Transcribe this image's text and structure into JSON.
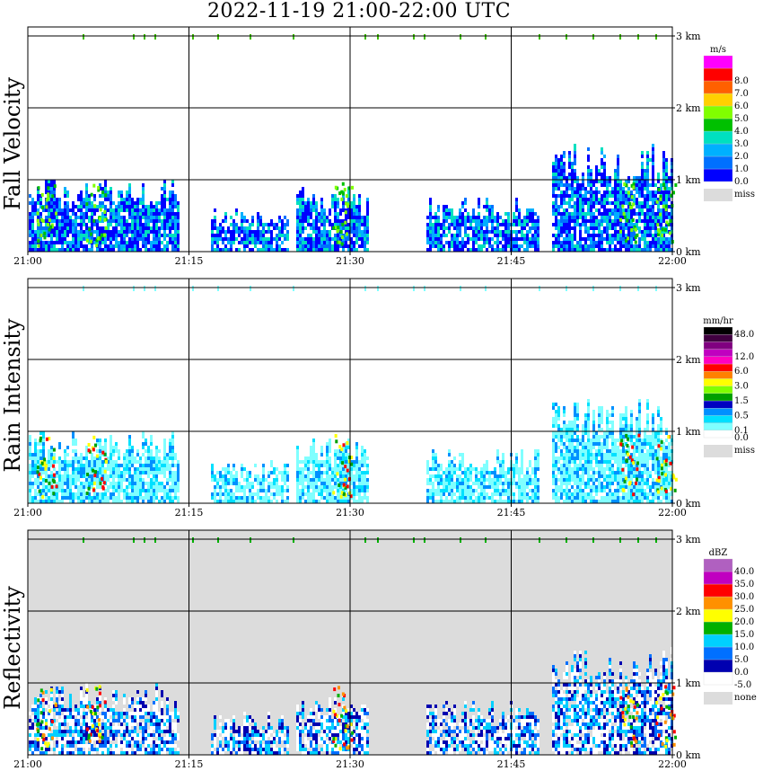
{
  "title": "2022-11-19   21:00-22:00 UTC",
  "x_ticks": [
    "21:00",
    "21:15",
    "21:30",
    "21:45",
    "22:00"
  ],
  "y_ticks": [
    "0 km",
    "1 km",
    "2 km",
    "3 km"
  ],
  "panels": [
    {
      "name": "fall-velocity",
      "label": "Fall Velocity",
      "unit": "m/s",
      "background": "#ffffff",
      "colorbar": [
        {
          "color": "#0000ff",
          "label": "0.0"
        },
        {
          "color": "#0070ff",
          "label": "1.0"
        },
        {
          "color": "#00b0ff",
          "label": "2.0"
        },
        {
          "color": "#00e0c0",
          "label": "3.0"
        },
        {
          "color": "#00c000",
          "label": "4.0"
        },
        {
          "color": "#80ff00",
          "label": "5.0"
        },
        {
          "color": "#ffd000",
          "label": "6.0"
        },
        {
          "color": "#ff6000",
          "label": "7.0"
        },
        {
          "color": "#ff0000",
          "label": "8.0"
        },
        {
          "color": "#ff00ff",
          "label": ""
        }
      ],
      "miss_label": "miss"
    },
    {
      "name": "rain-intensity",
      "label": "Rain Intensity",
      "unit": "mm/hr",
      "background": "#ffffff",
      "colorbar": [
        {
          "color": "#ffffff",
          "label": "0.0"
        },
        {
          "color": "#80ffff",
          "label": "0.1"
        },
        {
          "color": "#00e0ff",
          "label": ""
        },
        {
          "color": "#0090ff",
          "label": "0.5"
        },
        {
          "color": "#0000c0",
          "label": ""
        },
        {
          "color": "#00a000",
          "label": "1.5"
        },
        {
          "color": "#80ff00",
          "label": ""
        },
        {
          "color": "#ffff00",
          "label": "3.0"
        },
        {
          "color": "#ff8000",
          "label": ""
        },
        {
          "color": "#ff0000",
          "label": "6.0"
        },
        {
          "color": "#ff00c0",
          "label": ""
        },
        {
          "color": "#c000c0",
          "label": "12.0"
        },
        {
          "color": "#800080",
          "label": ""
        },
        {
          "color": "#400040",
          "label": ""
        },
        {
          "color": "#000000",
          "label": "48.0"
        }
      ],
      "miss_label": "miss"
    },
    {
      "name": "reflectivity",
      "label": "Reflectivity",
      "unit": "dBZ",
      "background": "#dcdcdc",
      "colorbar": [
        {
          "color": "#ffffff",
          "label": "-5.0"
        },
        {
          "color": "#0000b0",
          "label": "0.0"
        },
        {
          "color": "#0070ff",
          "label": "5.0"
        },
        {
          "color": "#00d0ff",
          "label": "10.0"
        },
        {
          "color": "#00b000",
          "label": "15.0"
        },
        {
          "color": "#ffff00",
          "label": "20.0"
        },
        {
          "color": "#ff9000",
          "label": "25.0"
        },
        {
          "color": "#ff0000",
          "label": "30.0"
        },
        {
          "color": "#c000c0",
          "label": "35.0"
        },
        {
          "color": "#b060c0",
          "label": "40.0"
        }
      ],
      "none_label": "none"
    }
  ],
  "chart_data": [
    {
      "type": "heatmap",
      "title": "2022-11-19   21:00-22:00 UTC",
      "ylabel": "Fall Velocity",
      "unit": "m/s",
      "x_range": [
        "21:00",
        "22:00"
      ],
      "y_range_km": [
        0,
        3.2
      ],
      "colorbar_ticks": [
        0.0,
        1.0,
        2.0,
        3.0,
        4.0,
        5.0,
        6.0,
        7.0,
        8.0
      ]
    },
    {
      "type": "heatmap",
      "ylabel": "Rain Intensity",
      "unit": "mm/hr",
      "x_range": [
        "21:00",
        "22:00"
      ],
      "y_range_km": [
        0,
        3.2
      ],
      "colorbar_ticks": [
        0.0,
        0.1,
        0.5,
        1.5,
        3.0,
        6.0,
        12.0,
        48.0
      ]
    },
    {
      "type": "heatmap",
      "ylabel": "Reflectivity",
      "unit": "dBZ",
      "x_range": [
        "21:00",
        "22:00"
      ],
      "y_range_km": [
        0,
        3.2
      ],
      "colorbar_ticks": [
        -5.0,
        0.0,
        5.0,
        10.0,
        15.0,
        20.0,
        25.0,
        30.0,
        35.0,
        40.0
      ]
    }
  ]
}
